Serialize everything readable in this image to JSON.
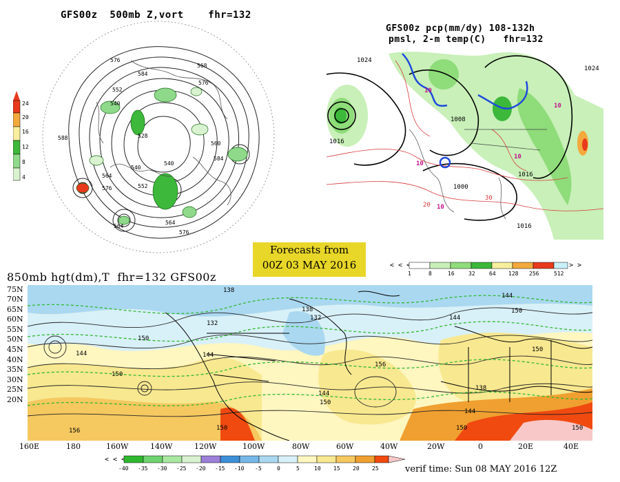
{
  "panel_polar": {
    "title": "GFS00z  500mb Z,vort    fhr=132",
    "contour_labels": [
      "576",
      "584",
      "552",
      "540",
      "568",
      "576",
      "588",
      "528",
      "540",
      "552",
      "560",
      "564",
      "576",
      "584",
      "564",
      "576",
      "540",
      "564"
    ],
    "colorbar_values": [
      "24",
      "20",
      "16",
      "12",
      "8",
      "4"
    ],
    "colorbar_colors": [
      "#e83a1c",
      "#f3a93c",
      "#f8ef9e",
      "#3db83a",
      "#8fd98a",
      "#d9f2cf"
    ]
  },
  "panel_precip": {
    "title_line1": "GFS00z pcp(mm/dy) 108-132h",
    "title_line2": "pmsl, 2-m temp(C)   fhr=132",
    "isobar_labels": [
      "1024",
      "1016",
      "1008",
      "1000",
      "1016",
      "1024",
      "1016"
    ],
    "temp_labels": [
      "10",
      "10",
      "10",
      "10",
      "10",
      "20",
      "30"
    ],
    "colorbar_values": [
      "1",
      "8",
      "16",
      "32",
      "64",
      "128",
      "256",
      "512"
    ],
    "colorbar_colors": [
      "#ffffff",
      "#c8f0b8",
      "#8fdc7a",
      "#3cb83a",
      "#f8ef9e",
      "#f3a93c",
      "#e83a1c",
      "#c8f0f8"
    ]
  },
  "banner": {
    "line1": "Forecasts from",
    "line2": "00Z 03 MAY 2016"
  },
  "panel_850": {
    "title": "850mb hgt(dm),T  fhr=132 GFS00z",
    "lat_labels": [
      "75N",
      "70N",
      "65N",
      "60N",
      "55N",
      "50N",
      "45N",
      "40N",
      "35N",
      "30N",
      "25N",
      "20N"
    ],
    "lon_labels": [
      "160E",
      "180",
      "160W",
      "140W",
      "120W",
      "100W",
      "80W",
      "60W",
      "40W",
      "20W",
      "0",
      "20E",
      "40E"
    ],
    "height_labels": [
      "138",
      "144",
      "132",
      "150",
      "144",
      "150",
      "138",
      "132",
      "144",
      "150",
      "144",
      "150",
      "156",
      "156",
      "144",
      "150",
      "138",
      "144",
      "150",
      "150",
      "150"
    ],
    "colorbar_values": [
      "-40",
      "-35",
      "-30",
      "-25",
      "-20",
      "-15",
      "-10",
      "-5",
      "0",
      "5",
      "10",
      "15",
      "20",
      "25"
    ],
    "colorbar_colors": [
      "#2fb82f",
      "#6fd36f",
      "#a9e8a0",
      "#d8f2cf",
      "#9b7fd8",
      "#3d8fd8",
      "#76b8e8",
      "#aad8f0",
      "#d8f0f8",
      "#fff6c0",
      "#f8e890",
      "#f5c860",
      "#f0a030",
      "#f04a10"
    ]
  },
  "verif_time": "verif time: Sun 08 MAY 2016 12Z"
}
